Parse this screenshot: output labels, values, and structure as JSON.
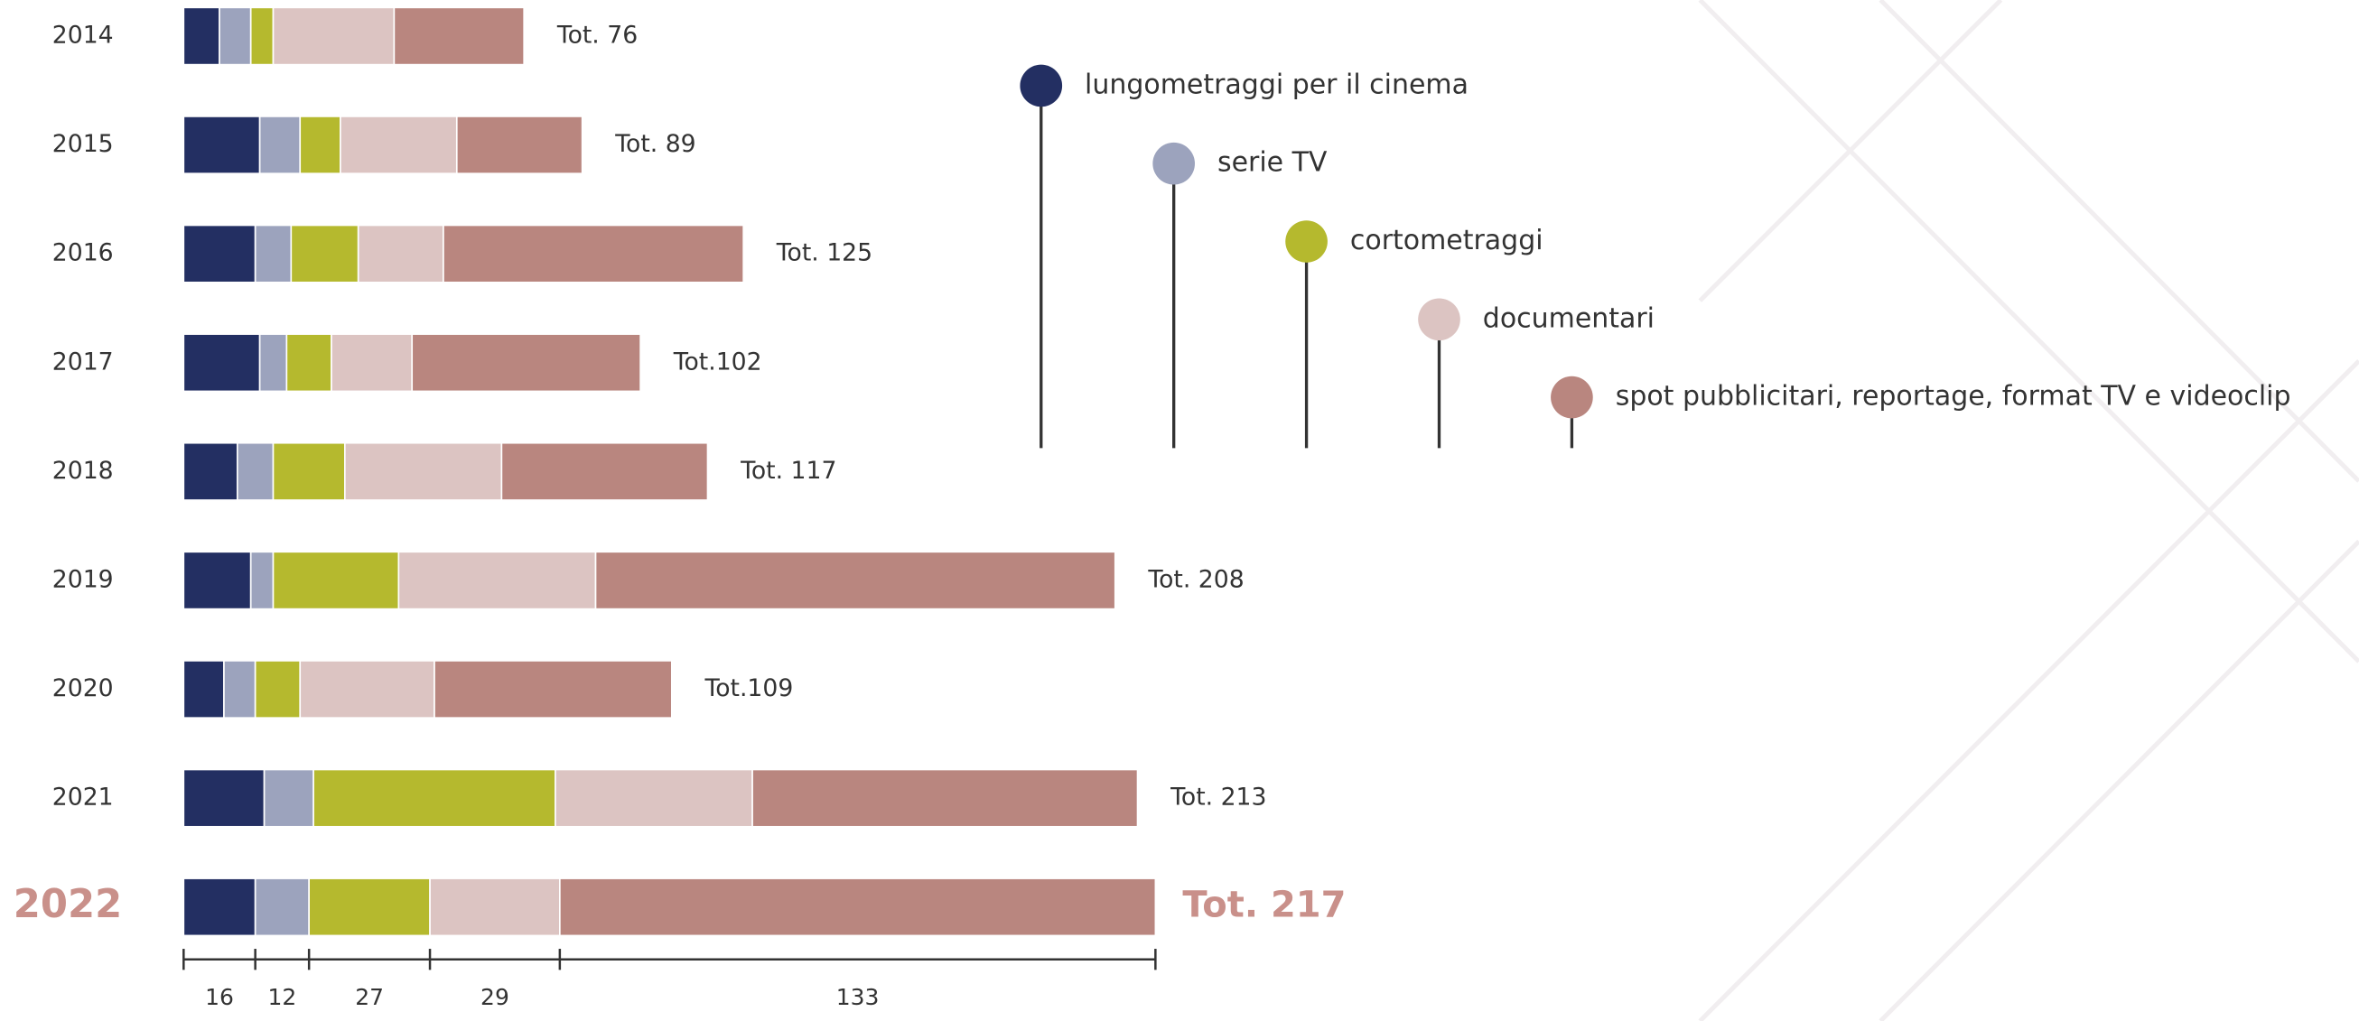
{
  "chart_data": {
    "type": "stacked-bar",
    "categories": [
      "2014",
      "2015",
      "2016",
      "2017",
      "2018",
      "2019",
      "2020",
      "2021",
      "2022"
    ],
    "total_labels": [
      "Tot. 76",
      "Tot. 89",
      "Tot. 125",
      "Tot.102",
      "Tot. 117",
      "Tot. 208",
      "Tot.109",
      "Tot. 213",
      "Tot. 217"
    ],
    "series": [
      {
        "name": "lungometraggi per il cinema",
        "color": "#232f62",
        "values": [
          8,
          17,
          16,
          17,
          12,
          15,
          9,
          18,
          16
        ]
      },
      {
        "name": "serie TV",
        "color": "#9ca3bd",
        "values": [
          7,
          9,
          8,
          6,
          8,
          5,
          7,
          11,
          12
        ]
      },
      {
        "name": "cortometraggi",
        "color": "#b5b92e",
        "values": [
          5,
          9,
          15,
          10,
          16,
          28,
          10,
          54,
          27
        ]
      },
      {
        "name": "documentari",
        "color": "#dcc4c2",
        "values": [
          27,
          26,
          19,
          18,
          35,
          44,
          30,
          44,
          29
        ]
      },
      {
        "name": "spot pubblicitari, reportage, format TV e videoclip",
        "color": "#b9867f",
        "values": [
          29,
          28,
          67,
          51,
          46,
          116,
          53,
          86,
          133
        ]
      }
    ],
    "highlight_color": "#c9908a"
  }
}
